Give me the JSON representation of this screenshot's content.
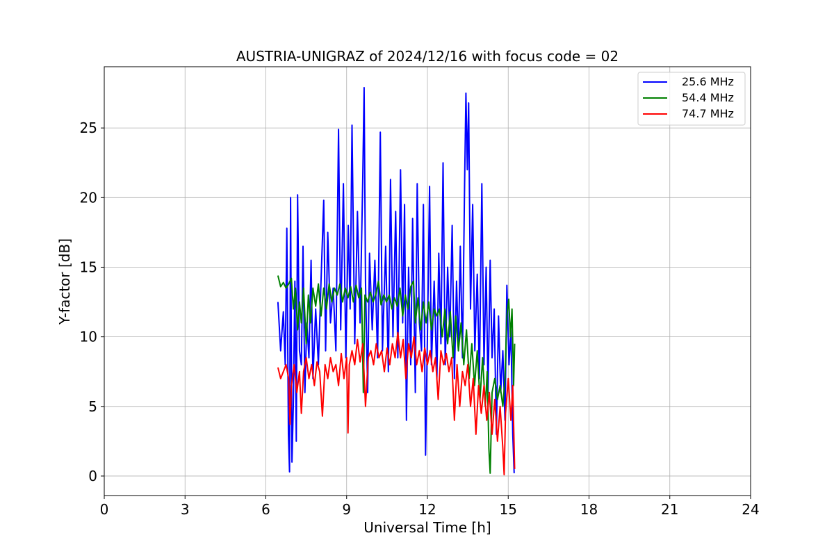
{
  "chart_data": {
    "type": "line",
    "title": "AUSTRIA-UNIGRAZ of 2024/12/16 with focus code = 02",
    "xlabel": "Universal Time [h]",
    "ylabel": "Y-factor [dB]",
    "xlim": [
      0,
      24
    ],
    "ylim": [
      -1.4,
      29.4
    ],
    "xticks": [
      0,
      3,
      6,
      9,
      12,
      15,
      18,
      21,
      24
    ],
    "yticks": [
      0,
      5,
      10,
      15,
      20,
      25
    ],
    "grid": true,
    "legend_position": "top-right",
    "series": [
      {
        "name": "25.6 MHz",
        "color": "#0000ff",
        "points": [
          [
            6.45,
            12.5
          ],
          [
            6.55,
            9.0
          ],
          [
            6.65,
            11.8
          ],
          [
            6.72,
            8.0
          ],
          [
            6.78,
            17.8
          ],
          [
            6.84,
            3.0
          ],
          [
            6.88,
            0.3
          ],
          [
            6.92,
            20.0
          ],
          [
            6.97,
            1.0
          ],
          [
            7.02,
            5.0
          ],
          [
            7.08,
            14.0
          ],
          [
            7.13,
            2.5
          ],
          [
            7.18,
            20.2
          ],
          [
            7.25,
            9.0
          ],
          [
            7.32,
            8.0
          ],
          [
            7.38,
            16.5
          ],
          [
            7.45,
            6.0
          ],
          [
            7.52,
            11.0
          ],
          [
            7.6,
            8.5
          ],
          [
            7.68,
            15.5
          ],
          [
            7.75,
            7.0
          ],
          [
            7.85,
            12.0
          ],
          [
            7.95,
            8.0
          ],
          [
            8.05,
            14.0
          ],
          [
            8.15,
            19.8
          ],
          [
            8.22,
            9.0
          ],
          [
            8.3,
            17.5
          ],
          [
            8.4,
            11.0
          ],
          [
            8.5,
            13.5
          ],
          [
            8.6,
            9.0
          ],
          [
            8.7,
            24.9
          ],
          [
            8.78,
            10.5
          ],
          [
            8.88,
            21.0
          ],
          [
            8.97,
            8.5
          ],
          [
            9.06,
            18.0
          ],
          [
            9.13,
            12.0
          ],
          [
            9.2,
            25.2
          ],
          [
            9.3,
            9.5
          ],
          [
            9.4,
            19.0
          ],
          [
            9.5,
            11.0
          ],
          [
            9.6,
            21.5
          ],
          [
            9.65,
            27.9
          ],
          [
            9.7,
            14.0
          ],
          [
            9.78,
            6.0
          ],
          [
            9.85,
            16.0
          ],
          [
            9.95,
            10.5
          ],
          [
            10.05,
            15.5
          ],
          [
            10.15,
            8.5
          ],
          [
            10.25,
            24.7
          ],
          [
            10.33,
            9.0
          ],
          [
            10.45,
            16.5
          ],
          [
            10.55,
            7.5
          ],
          [
            10.63,
            21.3
          ],
          [
            10.72,
            10.0
          ],
          [
            10.82,
            19.0
          ],
          [
            10.9,
            8.5
          ],
          [
            11.0,
            22.0
          ],
          [
            11.08,
            11.0
          ],
          [
            11.15,
            19.5
          ],
          [
            11.22,
            4.0
          ],
          [
            11.3,
            15.0
          ],
          [
            11.38,
            8.0
          ],
          [
            11.45,
            18.5
          ],
          [
            11.55,
            6.0
          ],
          [
            11.62,
            21.0
          ],
          [
            11.7,
            11.0
          ],
          [
            11.78,
            9.0
          ],
          [
            11.85,
            19.5
          ],
          [
            11.93,
            1.5
          ],
          [
            12.0,
            10.0
          ],
          [
            12.08,
            20.8
          ],
          [
            12.15,
            8.0
          ],
          [
            12.25,
            14.0
          ],
          [
            12.35,
            7.0
          ],
          [
            12.42,
            16.0
          ],
          [
            12.5,
            9.5
          ],
          [
            12.58,
            22.5
          ],
          [
            12.66,
            8.0
          ],
          [
            12.75,
            15.0
          ],
          [
            12.83,
            10.0
          ],
          [
            12.92,
            18.0
          ],
          [
            13.0,
            7.0
          ],
          [
            13.08,
            14.0
          ],
          [
            13.15,
            9.0
          ],
          [
            13.22,
            16.5
          ],
          [
            13.3,
            8.5
          ],
          [
            13.38,
            21.0
          ],
          [
            13.43,
            27.5
          ],
          [
            13.48,
            22.0
          ],
          [
            13.53,
            26.8
          ],
          [
            13.6,
            12.0
          ],
          [
            13.68,
            19.5
          ],
          [
            13.76,
            9.0
          ],
          [
            13.85,
            14.5
          ],
          [
            13.93,
            7.0
          ],
          [
            14.02,
            21.0
          ],
          [
            14.1,
            8.0
          ],
          [
            14.18,
            15.0
          ],
          [
            14.25,
            6.0
          ],
          [
            14.33,
            15.5
          ],
          [
            14.4,
            8.5
          ],
          [
            14.48,
            12.0
          ],
          [
            14.56,
            3.0
          ],
          [
            14.64,
            11.5
          ],
          [
            14.72,
            6.0
          ],
          [
            14.8,
            9.0
          ],
          [
            14.88,
            4.0
          ],
          [
            14.95,
            13.7
          ],
          [
            15.03,
            8.0
          ],
          [
            15.1,
            10.5
          ],
          [
            15.17,
            3.0
          ],
          [
            15.22,
            0.2
          ]
        ]
      },
      {
        "name": "54.4 MHz",
        "color": "#008000",
        "points": [
          [
            6.45,
            14.4
          ],
          [
            6.55,
            13.6
          ],
          [
            6.65,
            13.9
          ],
          [
            6.75,
            13.5
          ],
          [
            6.85,
            13.8
          ],
          [
            6.95,
            14.2
          ],
          [
            7.02,
            12.0
          ],
          [
            7.1,
            13.5
          ],
          [
            7.18,
            10.5
          ],
          [
            7.25,
            12.5
          ],
          [
            7.32,
            11.0
          ],
          [
            7.4,
            13.5
          ],
          [
            7.5,
            9.5
          ],
          [
            7.58,
            13.0
          ],
          [
            7.66,
            11.0
          ],
          [
            7.75,
            13.5
          ],
          [
            7.85,
            12.2
          ],
          [
            7.95,
            13.8
          ],
          [
            8.05,
            11.5
          ],
          [
            8.15,
            13.5
          ],
          [
            8.25,
            12.0
          ],
          [
            8.35,
            13.8
          ],
          [
            8.45,
            12.5
          ],
          [
            8.55,
            13.5
          ],
          [
            8.65,
            13.0
          ],
          [
            8.75,
            13.8
          ],
          [
            8.85,
            12.5
          ],
          [
            8.95,
            13.5
          ],
          [
            9.05,
            12.8
          ],
          [
            9.15,
            13.6
          ],
          [
            9.25,
            12.5
          ],
          [
            9.35,
            13.7
          ],
          [
            9.45,
            12.8
          ],
          [
            9.55,
            13.5
          ],
          [
            9.62,
            6.0
          ],
          [
            9.68,
            13.0
          ],
          [
            9.78,
            12.5
          ],
          [
            9.88,
            13.2
          ],
          [
            9.98,
            12.5
          ],
          [
            10.08,
            13.0
          ],
          [
            10.18,
            14.0
          ],
          [
            10.28,
            12.3
          ],
          [
            10.38,
            13.0
          ],
          [
            10.48,
            12.5
          ],
          [
            10.58,
            13.0
          ],
          [
            10.68,
            12.0
          ],
          [
            10.78,
            12.8
          ],
          [
            10.88,
            12.2
          ],
          [
            10.98,
            13.5
          ],
          [
            11.08,
            11.5
          ],
          [
            11.18,
            13.0
          ],
          [
            11.28,
            12.0
          ],
          [
            11.38,
            13.6
          ],
          [
            11.48,
            14.0
          ],
          [
            11.55,
            11.0
          ],
          [
            11.65,
            12.8
          ],
          [
            11.75,
            10.5
          ],
          [
            11.85,
            12.5
          ],
          [
            11.95,
            11.0
          ],
          [
            12.05,
            12.5
          ],
          [
            12.15,
            10.5
          ],
          [
            12.25,
            12.0
          ],
          [
            12.35,
            11.5
          ],
          [
            12.45,
            12.0
          ],
          [
            12.55,
            10.0
          ],
          [
            12.65,
            12.0
          ],
          [
            12.75,
            9.5
          ],
          [
            12.85,
            11.8
          ],
          [
            12.95,
            8.5
          ],
          [
            13.05,
            11.5
          ],
          [
            13.15,
            9.0
          ],
          [
            13.25,
            11.0
          ],
          [
            13.35,
            8.0
          ],
          [
            13.45,
            10.5
          ],
          [
            13.55,
            7.0
          ],
          [
            13.65,
            9.5
          ],
          [
            13.75,
            6.5
          ],
          [
            13.85,
            9.0
          ],
          [
            13.95,
            5.5
          ],
          [
            14.05,
            8.5
          ],
          [
            14.15,
            5.0
          ],
          [
            14.22,
            7.5
          ],
          [
            14.28,
            2.0
          ],
          [
            14.33,
            0.2
          ],
          [
            14.4,
            6.0
          ],
          [
            14.5,
            7.0
          ],
          [
            14.6,
            5.5
          ],
          [
            14.7,
            6.5
          ],
          [
            14.8,
            5.0
          ],
          [
            14.88,
            7.0
          ],
          [
            14.95,
            11.5
          ],
          [
            15.02,
            12.7
          ],
          [
            15.08,
            10.0
          ],
          [
            15.14,
            12.0
          ],
          [
            15.2,
            6.5
          ],
          [
            15.24,
            9.5
          ]
        ]
      },
      {
        "name": "74.7 MHz",
        "color": "#ff0000",
        "points": [
          [
            6.45,
            7.8
          ],
          [
            6.55,
            7.0
          ],
          [
            6.65,
            7.5
          ],
          [
            6.75,
            8.0
          ],
          [
            6.85,
            7.0
          ],
          [
            6.9,
            3.7
          ],
          [
            6.95,
            6.5
          ],
          [
            7.05,
            8.0
          ],
          [
            7.15,
            6.0
          ],
          [
            7.25,
            7.5
          ],
          [
            7.32,
            4.5
          ],
          [
            7.4,
            7.5
          ],
          [
            7.5,
            8.5
          ],
          [
            7.6,
            7.0
          ],
          [
            7.7,
            8.0
          ],
          [
            7.8,
            6.5
          ],
          [
            7.9,
            8.2
          ],
          [
            8.0,
            7.5
          ],
          [
            8.1,
            4.3
          ],
          [
            8.2,
            8.0
          ],
          [
            8.3,
            7.0
          ],
          [
            8.4,
            8.5
          ],
          [
            8.5,
            7.5
          ],
          [
            8.6,
            8.0
          ],
          [
            8.7,
            6.5
          ],
          [
            8.8,
            8.8
          ],
          [
            8.9,
            7.0
          ],
          [
            9.0,
            8.5
          ],
          [
            9.05,
            3.1
          ],
          [
            9.1,
            8.0
          ],
          [
            9.2,
            9.0
          ],
          [
            9.3,
            8.0
          ],
          [
            9.4,
            9.8
          ],
          [
            9.5,
            8.2
          ],
          [
            9.6,
            9.5
          ],
          [
            9.7,
            5.0
          ],
          [
            9.8,
            8.5
          ],
          [
            9.9,
            9.0
          ],
          [
            10.0,
            8.0
          ],
          [
            10.1,
            9.5
          ],
          [
            10.2,
            8.5
          ],
          [
            10.3,
            9.0
          ],
          [
            10.4,
            7.5
          ],
          [
            10.5,
            9.2
          ],
          [
            10.6,
            8.0
          ],
          [
            10.7,
            9.5
          ],
          [
            10.8,
            8.5
          ],
          [
            10.9,
            10.3
          ],
          [
            11.0,
            8.5
          ],
          [
            11.1,
            9.8
          ],
          [
            11.2,
            7.0
          ],
          [
            11.3,
            9.5
          ],
          [
            11.4,
            8.5
          ],
          [
            11.5,
            10.0
          ],
          [
            11.6,
            8.0
          ],
          [
            11.7,
            9.0
          ],
          [
            11.8,
            7.5
          ],
          [
            11.9,
            9.2
          ],
          [
            12.0,
            8.0
          ],
          [
            12.1,
            9.0
          ],
          [
            12.2,
            7.5
          ],
          [
            12.3,
            8.5
          ],
          [
            12.4,
            5.5
          ],
          [
            12.5,
            9.0
          ],
          [
            12.6,
            8.0
          ],
          [
            12.7,
            8.8
          ],
          [
            12.8,
            7.5
          ],
          [
            12.9,
            8.5
          ],
          [
            13.0,
            4.0
          ],
          [
            13.1,
            8.0
          ],
          [
            13.2,
            5.0
          ],
          [
            13.3,
            7.5
          ],
          [
            13.4,
            6.5
          ],
          [
            13.5,
            8.0
          ],
          [
            13.6,
            5.0
          ],
          [
            13.7,
            7.0
          ],
          [
            13.8,
            3.0
          ],
          [
            13.9,
            6.5
          ],
          [
            14.0,
            4.5
          ],
          [
            14.1,
            6.5
          ],
          [
            14.2,
            4.0
          ],
          [
            14.3,
            6.0
          ],
          [
            14.4,
            3.0
          ],
          [
            14.5,
            5.5
          ],
          [
            14.6,
            2.5
          ],
          [
            14.7,
            5.0
          ],
          [
            14.8,
            2.0
          ],
          [
            14.85,
            0.1
          ],
          [
            14.9,
            4.5
          ],
          [
            15.0,
            7.0
          ],
          [
            15.1,
            4.0
          ],
          [
            15.17,
            6.5
          ],
          [
            15.24,
            0.5
          ]
        ]
      }
    ]
  }
}
